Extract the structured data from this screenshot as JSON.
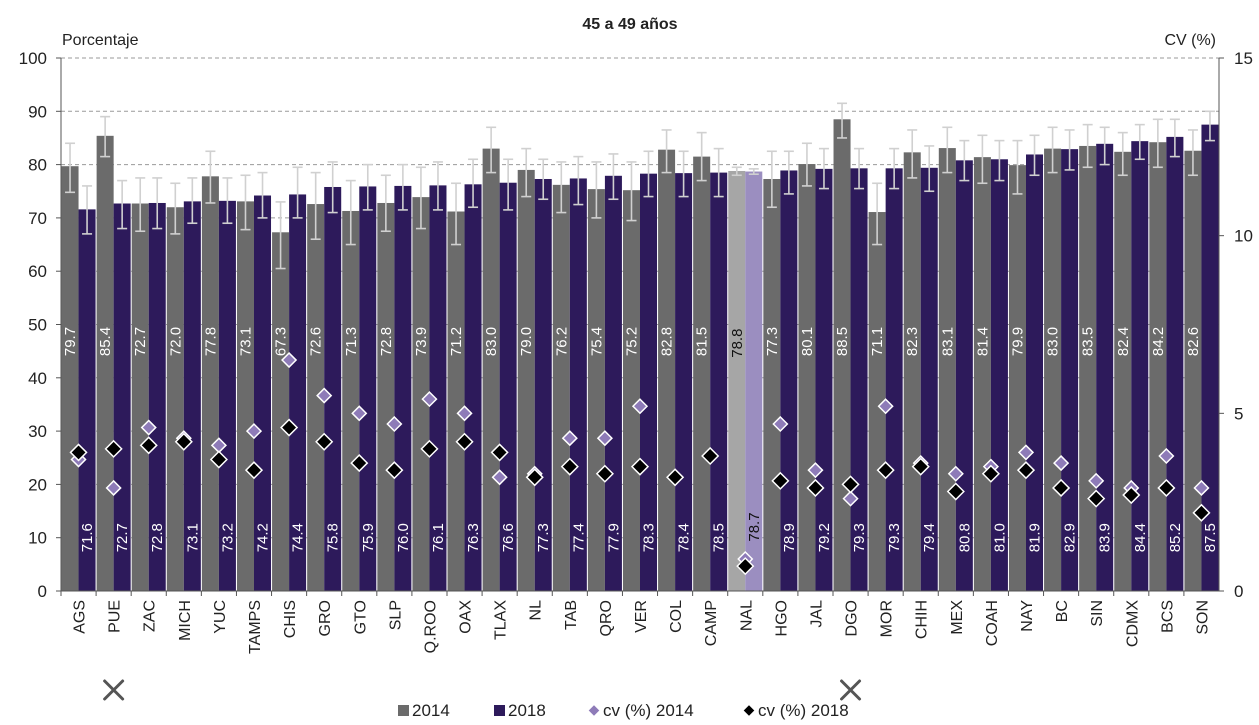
{
  "chart_data": {
    "type": "bar",
    "title": "45 a 49 años",
    "ylabel": "Porcentaje",
    "y2label": "CV (%)",
    "ylim": [
      0,
      100
    ],
    "y2lim": [
      0,
      15
    ],
    "yticks": [
      "0",
      "10",
      "20",
      "30",
      "40",
      "50",
      "60",
      "70",
      "80",
      "90",
      "100"
    ],
    "y2ticks": [
      "0",
      "5",
      "10",
      "15"
    ],
    "grid": "horizontal dashed",
    "legend_position": "bottom",
    "categories": [
      "AGS",
      "PUE",
      "ZAC",
      "MICH",
      "YUC",
      "TAMPS",
      "CHIS",
      "GRO",
      "GTO",
      "SLP",
      "Q.ROO",
      "OAX",
      "TLAX",
      "NL",
      "TAB",
      "QRO",
      "VER",
      "COL",
      "CAMP",
      "NAL",
      "HGO",
      "JAL",
      "DGO",
      "MOR",
      "CHIH",
      "MEX",
      "COAH",
      "NAY",
      "BC",
      "SIN",
      "CDMX",
      "BCS",
      "SON"
    ],
    "highlight_category": "NAL",
    "marked_categories": [
      "PUE",
      "DGO"
    ],
    "series": [
      {
        "name": "2014",
        "axis": "left",
        "kind": "bar",
        "color": "#6b6b6b",
        "highlight_color": "#a6a6a6",
        "values": [
          79.7,
          85.4,
          72.7,
          72.0,
          77.8,
          73.1,
          67.3,
          72.6,
          71.3,
          72.8,
          73.9,
          71.2,
          83.0,
          79.0,
          76.2,
          75.4,
          75.2,
          82.8,
          81.5,
          78.8,
          77.3,
          80.1,
          88.5,
          71.1,
          82.3,
          83.1,
          81.4,
          79.9,
          83.0,
          83.5,
          82.4,
          84.2,
          82.6
        ],
        "value_labels": [
          "79.7",
          "85.4",
          "72.7",
          "72.0",
          "77.8",
          "73.1",
          "67.3",
          "72.6",
          "71.3",
          "72.8",
          "73.9",
          "71.2",
          "83.0",
          "79.0",
          "76.2",
          "75.4",
          "75.2",
          "82.8",
          "81.5",
          "78.8",
          "77.3",
          "80.1",
          "88.5",
          "71.1",
          "82.3",
          "83.1",
          "81.4",
          "79.9",
          "83.0",
          "83.5",
          "82.4",
          "84.2",
          "82.6"
        ],
        "error_low": [
          74.8,
          81.5,
          67.5,
          67.0,
          72.8,
          67.8,
          60.5,
          66.0,
          65.0,
          67.5,
          68.0,
          65.0,
          78.5,
          74.0,
          71.0,
          70.0,
          69.5,
          78.5,
          77.0,
          78.0,
          72.0,
          76.0,
          85.0,
          65.0,
          77.5,
          78.5,
          76.5,
          74.5,
          78.5,
          79.5,
          78.0,
          79.5,
          78.0
        ],
        "error_high": [
          84.0,
          89.0,
          77.5,
          76.5,
          82.5,
          78.0,
          73.0,
          78.5,
          77.0,
          78.0,
          79.5,
          76.5,
          87.0,
          83.0,
          80.5,
          80.5,
          80.5,
          86.5,
          86.0,
          79.5,
          82.5,
          84.0,
          91.5,
          76.5,
          86.5,
          87.0,
          85.5,
          84.5,
          87.0,
          87.5,
          86.0,
          88.5,
          86.5
        ]
      },
      {
        "name": "2018",
        "axis": "left",
        "kind": "bar",
        "color": "#2d1a5b",
        "highlight_color": "#9b8ec0",
        "values": [
          71.6,
          72.7,
          72.8,
          73.1,
          73.2,
          74.2,
          74.4,
          75.8,
          75.9,
          76.0,
          76.1,
          76.3,
          76.6,
          77.3,
          77.4,
          77.9,
          78.3,
          78.4,
          78.5,
          78.7,
          78.9,
          79.2,
          79.3,
          79.3,
          79.4,
          80.8,
          81.0,
          81.9,
          82.9,
          83.9,
          84.4,
          85.2,
          87.5
        ],
        "value_labels": [
          "71.6",
          "72.7",
          "72.8",
          "73.1",
          "73.2",
          "74.2",
          "74.4",
          "75.8",
          "75.9",
          "76.0",
          "76.1",
          "76.3",
          "76.6",
          "77.3",
          "77.4",
          "77.9",
          "78.3",
          "78.4",
          "78.5",
          "78.7",
          "78.9",
          "79.2",
          "79.3",
          "79.3",
          "79.4",
          "80.8",
          "81.0",
          "81.9",
          "82.9",
          "83.9",
          "84.4",
          "85.2",
          "87.5"
        ],
        "error_low": [
          67.0,
          68.0,
          68.0,
          69.0,
          69.0,
          70.0,
          70.0,
          71.0,
          71.5,
          71.5,
          71.5,
          72.0,
          71.5,
          73.5,
          72.5,
          73.5,
          74.0,
          74.0,
          74.0,
          78.2,
          74.5,
          75.5,
          75.5,
          75.5,
          75.0,
          77.0,
          77.0,
          78.0,
          79.0,
          80.0,
          81.0,
          81.5,
          84.5
        ],
        "error_high": [
          76.0,
          77.0,
          77.5,
          77.5,
          77.5,
          78.5,
          79.5,
          80.5,
          80.0,
          80.0,
          80.5,
          81.0,
          81.0,
          81.0,
          81.5,
          82.0,
          82.5,
          82.5,
          83.0,
          79.2,
          82.5,
          83.0,
          83.0,
          83.0,
          83.5,
          84.5,
          84.5,
          85.5,
          86.5,
          87.0,
          87.5,
          88.5,
          90.0
        ]
      },
      {
        "name": "cv (%) 2014",
        "axis": "right",
        "kind": "marker",
        "marker": "diamond",
        "color": "#8e7bb8",
        "values": [
          3.7,
          2.9,
          4.6,
          4.3,
          4.1,
          4.5,
          6.5,
          5.5,
          5.0,
          4.7,
          5.4,
          5.0,
          3.2,
          3.3,
          4.3,
          4.3,
          5.2,
          3.2,
          3.8,
          0.9,
          4.7,
          3.4,
          2.6,
          5.2,
          3.6,
          3.3,
          3.5,
          3.9,
          3.6,
          3.1,
          2.9,
          3.8,
          2.9
        ]
      },
      {
        "name": "cv (%) 2018",
        "axis": "right",
        "kind": "marker",
        "marker": "diamond",
        "color": "#000000",
        "values": [
          3.9,
          4.0,
          4.1,
          4.2,
          3.7,
          3.4,
          4.6,
          4.2,
          3.6,
          3.4,
          4.0,
          4.2,
          3.9,
          3.2,
          3.5,
          3.3,
          3.5,
          3.2,
          3.8,
          0.7,
          3.1,
          2.9,
          3.0,
          3.4,
          3.5,
          2.8,
          3.3,
          3.4,
          2.9,
          2.6,
          2.7,
          2.9,
          2.2
        ]
      }
    ]
  }
}
